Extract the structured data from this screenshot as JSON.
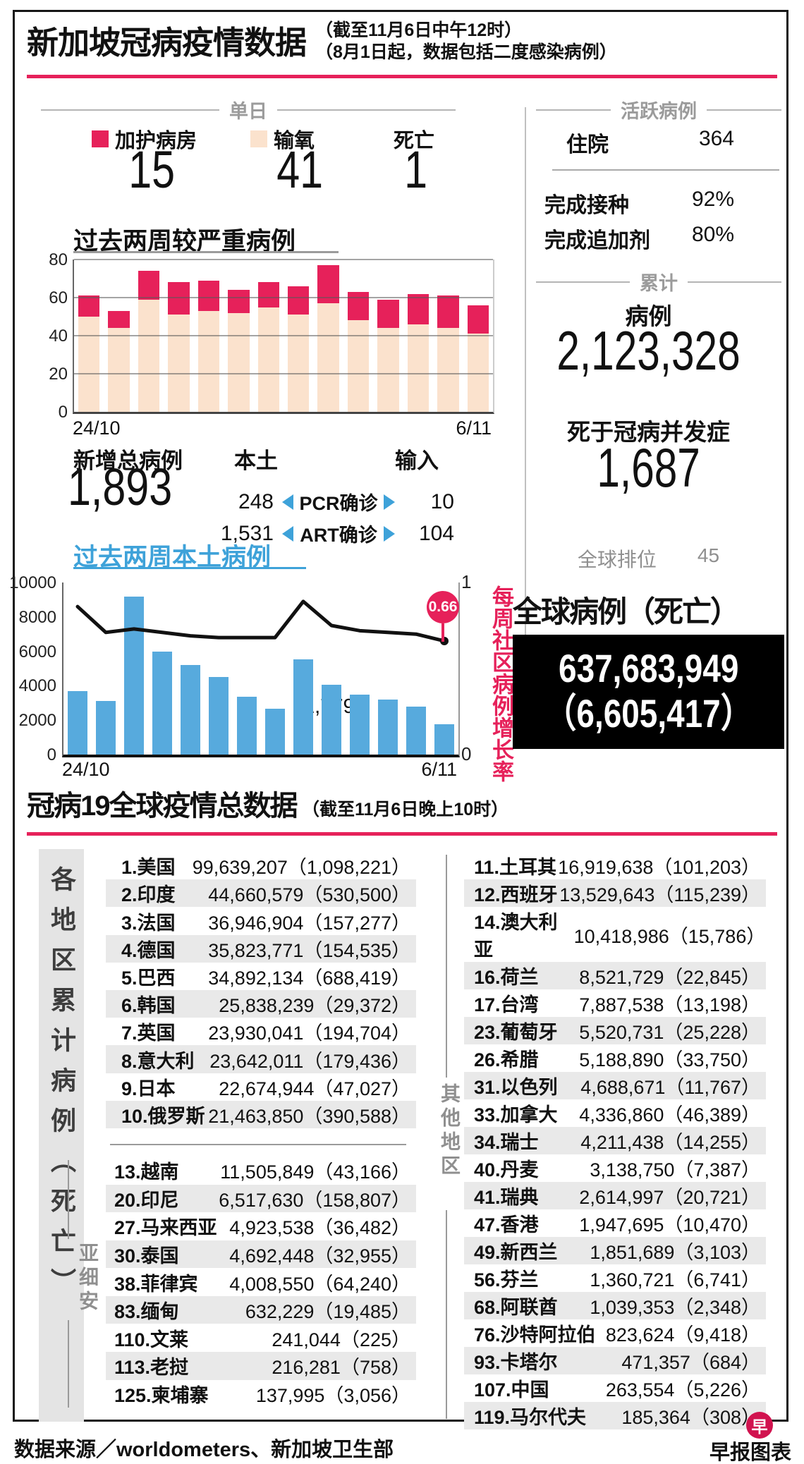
{
  "header": {
    "title": "新加坡冠病疫情数据",
    "note1": "（截至11月6日中午12时）",
    "note2": "（8月1日起，数据包括二度感染病例）"
  },
  "daily": {
    "section": "单日",
    "legend_icu": "加护病房",
    "legend_oxygen": "输氧",
    "legend_death": "死亡",
    "icu": "15",
    "oxygen": "41",
    "death": "1"
  },
  "newcases": {
    "total_label": "新增总病例",
    "total": "1,893",
    "local_label": "本土",
    "import_label": "输入",
    "rows": [
      {
        "local": "248",
        "method": "PCR确诊",
        "imported": "10"
      },
      {
        "local": "1,531",
        "method": "ART确诊",
        "imported": "104"
      }
    ]
  },
  "active": {
    "section": "活跃病例",
    "hospital_label": "住院",
    "hospital": "364",
    "vax_label": "完成接种",
    "vax": "92%",
    "booster_label": "完成追加剂",
    "booster": "80%"
  },
  "cumulative": {
    "section": "累计",
    "cases_label": "病例",
    "cases": "2,123,328",
    "deaths_label": "死于冠病并发症",
    "deaths": "1,687",
    "rank_label": "全球排位",
    "rank": "45"
  },
  "global_box": {
    "title": "全球病例（死亡）",
    "cases": "637,683,949",
    "deaths": "（6,605,417）"
  },
  "world": {
    "title": "冠病19全球疫情总数据",
    "note": "（截至11月6日晚上10时）",
    "side_label": "各地区累计病例（死亡）",
    "regions": {
      "asean_label": "亚细安",
      "others_label": "其他地区"
    },
    "top10": [
      {
        "name": "1.美国",
        "cases": "99,639,207",
        "deaths": "1,098,221"
      },
      {
        "name": "2.印度",
        "cases": "44,660,579",
        "deaths": "530,500"
      },
      {
        "name": "3.法国",
        "cases": "36,946,904",
        "deaths": "157,277"
      },
      {
        "name": "4.德国",
        "cases": "35,823,771",
        "deaths": "154,535"
      },
      {
        "name": "5.巴西",
        "cases": "34,892,134",
        "deaths": "688,419"
      },
      {
        "name": "6.韩国",
        "cases": "25,838,239",
        "deaths": "29,372"
      },
      {
        "name": "7.英国",
        "cases": "23,930,041",
        "deaths": "194,704"
      },
      {
        "name": "8.意大利",
        "cases": "23,642,011",
        "deaths": "179,436"
      },
      {
        "name": "9.日本",
        "cases": "22,674,944",
        "deaths": "47,027"
      },
      {
        "name": "10.俄罗斯",
        "cases": "21,463,850",
        "deaths": "390,588"
      }
    ],
    "asean": [
      {
        "name": "13.越南",
        "cases": "11,505,849",
        "deaths": "43,166"
      },
      {
        "name": "20.印尼",
        "cases": "6,517,630",
        "deaths": "158,807"
      },
      {
        "name": "27.马来西亚",
        "cases": "4,923,538",
        "deaths": "36,482"
      },
      {
        "name": "30.泰国",
        "cases": "4,692,448",
        "deaths": "32,955"
      },
      {
        "name": "38.菲律宾",
        "cases": "4,008,550",
        "deaths": "64,240"
      },
      {
        "name": "83.缅甸",
        "cases": "632,229",
        "deaths": "19,485"
      },
      {
        "name": "110.文莱",
        "cases": "241,044",
        "deaths": "225"
      },
      {
        "name": "113.老挝",
        "cases": "216,281",
        "deaths": "758"
      },
      {
        "name": "125.柬埔寨",
        "cases": "137,995",
        "deaths": "3,056"
      }
    ],
    "others": [
      {
        "name": "11.土耳其",
        "cases": "16,919,638",
        "deaths": "101,203"
      },
      {
        "name": "12.西班牙",
        "cases": "13,529,643",
        "deaths": "115,239"
      },
      {
        "name": "14.澳大利亚",
        "cases": "10,418,986",
        "deaths": "15,786"
      },
      {
        "name": "16.荷兰",
        "cases": "8,521,729",
        "deaths": "22,845"
      },
      {
        "name": "17.台湾",
        "cases": "7,887,538",
        "deaths": "13,198"
      },
      {
        "name": "23.葡萄牙",
        "cases": "5,520,731",
        "deaths": "25,228"
      },
      {
        "name": "26.希腊",
        "cases": "5,188,890",
        "deaths": "33,750"
      },
      {
        "name": "31.以色列",
        "cases": "4,688,671",
        "deaths": "11,767"
      },
      {
        "name": "33.加拿大",
        "cases": "4,336,860",
        "deaths": "46,389"
      },
      {
        "name": "34.瑞士",
        "cases": "4,211,438",
        "deaths": "14,255"
      },
      {
        "name": "40.丹麦",
        "cases": "3,138,750",
        "deaths": "7,387"
      },
      {
        "name": "41.瑞典",
        "cases": "2,614,997",
        "deaths": "20,721"
      },
      {
        "name": "47.香港",
        "cases": "1,947,695",
        "deaths": "10,470"
      },
      {
        "name": "49.新西兰",
        "cases": "1,851,689",
        "deaths": "3,103"
      },
      {
        "name": "56.芬兰",
        "cases": "1,360,721",
        "deaths": "6,741"
      },
      {
        "name": "68.阿联酋",
        "cases": "1,039,353",
        "deaths": "2,348"
      },
      {
        "name": "76.沙特阿拉伯",
        "cases": "823,624",
        "deaths": "9,418"
      },
      {
        "name": "93.卡塔尔",
        "cases": "471,357",
        "deaths": "684"
      },
      {
        "name": "107.中国",
        "cases": "263,554",
        "deaths": "5,226"
      },
      {
        "name": "119.马尔代夫",
        "cases": "185,364",
        "deaths": "308"
      }
    ]
  },
  "footer": {
    "source": "数据来源／worldometers、新加坡卫生部",
    "credit": "早报图表",
    "logo": "早"
  },
  "colors": {
    "accent_pink": "#e6215a",
    "bar_beige": "#fbe2cd",
    "bar_blue": "#57aadd",
    "row_shade": "#e9e9e9"
  },
  "chart_data": [
    {
      "type": "bar",
      "stacked": true,
      "title": "过去两周较严重病例",
      "x_first": "24/10",
      "x_last": "6/11",
      "ylim": [
        0,
        80
      ],
      "yticks": [
        0,
        20,
        40,
        60,
        80
      ],
      "grid": true,
      "series": [
        {
          "name": "输氧",
          "values": [
            50,
            44,
            59,
            51,
            53,
            52,
            55,
            51,
            57,
            48,
            44,
            46,
            44,
            41
          ]
        },
        {
          "name": "加护病房",
          "values": [
            11,
            9,
            15,
            17,
            16,
            12,
            13,
            15,
            20,
            15,
            15,
            16,
            17,
            15
          ]
        }
      ]
    },
    {
      "type": "bar+line",
      "title": "过去两周本土病例",
      "x_first": "24/10",
      "x_last": "6/11",
      "ylim_left": [
        0,
        10000
      ],
      "yticks_left": [
        0,
        2000,
        4000,
        6000,
        8000,
        10000
      ],
      "ylim_right": [
        0,
        1
      ],
      "yticks_right": [
        0,
        1
      ],
      "bars": {
        "name": "本土病例",
        "values": [
          3700,
          3100,
          9200,
          6000,
          5200,
          4500,
          3350,
          2650,
          5550,
          4050,
          3500,
          3200,
          2800,
          1779
        ]
      },
      "line": {
        "name": "每周社区病例增长率",
        "values": [
          0.86,
          0.71,
          0.73,
          0.71,
          0.69,
          0.68,
          0.68,
          0.68,
          0.89,
          0.75,
          0.72,
          0.71,
          0.7,
          0.66
        ]
      },
      "annotations": {
        "last_bar": "1,779",
        "line_end": "0.66"
      }
    }
  ]
}
